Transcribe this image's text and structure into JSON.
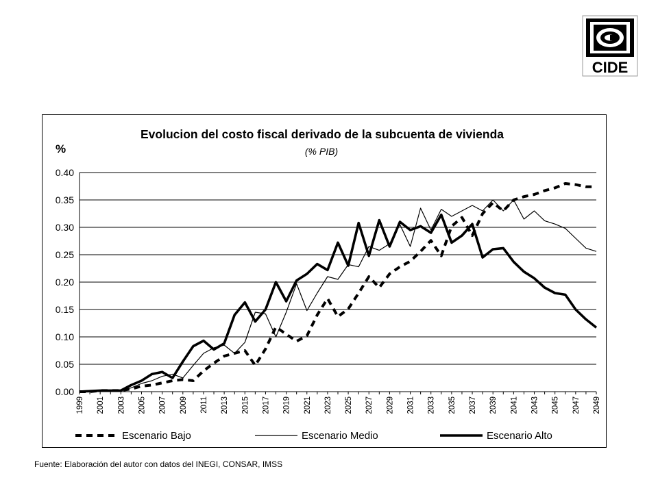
{
  "logo": {
    "text": "CIDE",
    "icon": "cide-logo-icon"
  },
  "source_note": "Fuente: Elaboración del autor con datos del INEGI, CONSAR, IMSS",
  "chart_data": {
    "type": "line",
    "title": "Evolucion del costo fiscal derivado de la subcuenta de vivienda",
    "subtitle": "(% PIB)",
    "ylabel": "%",
    "xlabel": "",
    "ylim": [
      0,
      0.4
    ],
    "yticks": [
      "0.00",
      "0.05",
      "0.10",
      "0.15",
      "0.20",
      "0.25",
      "0.30",
      "0.35",
      "0.40"
    ],
    "x": [
      1999,
      2000,
      2001,
      2002,
      2003,
      2004,
      2005,
      2006,
      2007,
      2008,
      2009,
      2010,
      2011,
      2012,
      2013,
      2014,
      2015,
      2016,
      2017,
      2018,
      2019,
      2020,
      2021,
      2022,
      2023,
      2024,
      2025,
      2026,
      2027,
      2028,
      2029,
      2030,
      2031,
      2032,
      2033,
      2034,
      2035,
      2036,
      2037,
      2038,
      2039,
      2040,
      2041,
      2042,
      2043,
      2044,
      2045,
      2046,
      2047,
      2048,
      2049
    ],
    "xtick_labels": [
      "1999",
      "2001",
      "2003",
      "2005",
      "2007",
      "2009",
      "2011",
      "2013",
      "2015",
      "2017",
      "2019",
      "2021",
      "2023",
      "2025",
      "2027",
      "2029",
      "2031",
      "2033",
      "2035",
      "2037",
      "2039",
      "2041",
      "2043",
      "2045",
      "2047",
      "2049"
    ],
    "grid": true,
    "legend_position": "bottom",
    "colors": {
      "line": "#000000",
      "grid": "#000000"
    },
    "series": [
      {
        "name": "Escenario Bajo",
        "style": "dashed",
        "values": [
          0,
          0,
          0.002,
          0.002,
          0.002,
          0.005,
          0.01,
          0.012,
          0.016,
          0.02,
          0.022,
          0.02,
          0.038,
          0.052,
          0.065,
          0.07,
          0.075,
          0.048,
          0.078,
          0.118,
          0.105,
          0.092,
          0.102,
          0.14,
          0.17,
          0.137,
          0.151,
          0.18,
          0.21,
          0.19,
          0.215,
          0.228,
          0.238,
          0.256,
          0.276,
          0.248,
          0.302,
          0.318,
          0.285,
          0.325,
          0.345,
          0.33,
          0.35,
          0.356,
          0.36,
          0.367,
          0.372,
          0.38,
          0.378,
          0.374,
          0.374
        ]
      },
      {
        "name": "Escenario Medio",
        "style": "thin",
        "values": [
          0,
          0,
          0.002,
          0.002,
          0.002,
          0.007,
          0.015,
          0.02,
          0.028,
          0.032,
          0.025,
          0.048,
          0.07,
          0.08,
          0.085,
          0.07,
          0.09,
          0.145,
          0.142,
          0.1,
          0.145,
          0.197,
          0.148,
          0.18,
          0.21,
          0.205,
          0.232,
          0.228,
          0.265,
          0.258,
          0.27,
          0.305,
          0.265,
          0.335,
          0.295,
          0.333,
          0.32,
          0.33,
          0.34,
          0.33,
          0.35,
          0.33,
          0.35,
          0.315,
          0.33,
          0.312,
          0.306,
          0.298,
          0.28,
          0.262,
          0.256
        ]
      },
      {
        "name": "Escenario Alto",
        "style": "thick",
        "values": [
          0,
          0.001,
          0.002,
          0.002,
          0.002,
          0.012,
          0.02,
          0.032,
          0.036,
          0.025,
          0.055,
          0.083,
          0.093,
          0.077,
          0.088,
          0.14,
          0.163,
          0.128,
          0.15,
          0.2,
          0.165,
          0.203,
          0.215,
          0.233,
          0.222,
          0.272,
          0.23,
          0.308,
          0.248,
          0.313,
          0.265,
          0.31,
          0.295,
          0.302,
          0.29,
          0.323,
          0.272,
          0.285,
          0.306,
          0.245,
          0.26,
          0.262,
          0.237,
          0.219,
          0.207,
          0.19,
          0.18,
          0.177,
          0.15,
          0.132,
          0.117
        ]
      }
    ]
  }
}
